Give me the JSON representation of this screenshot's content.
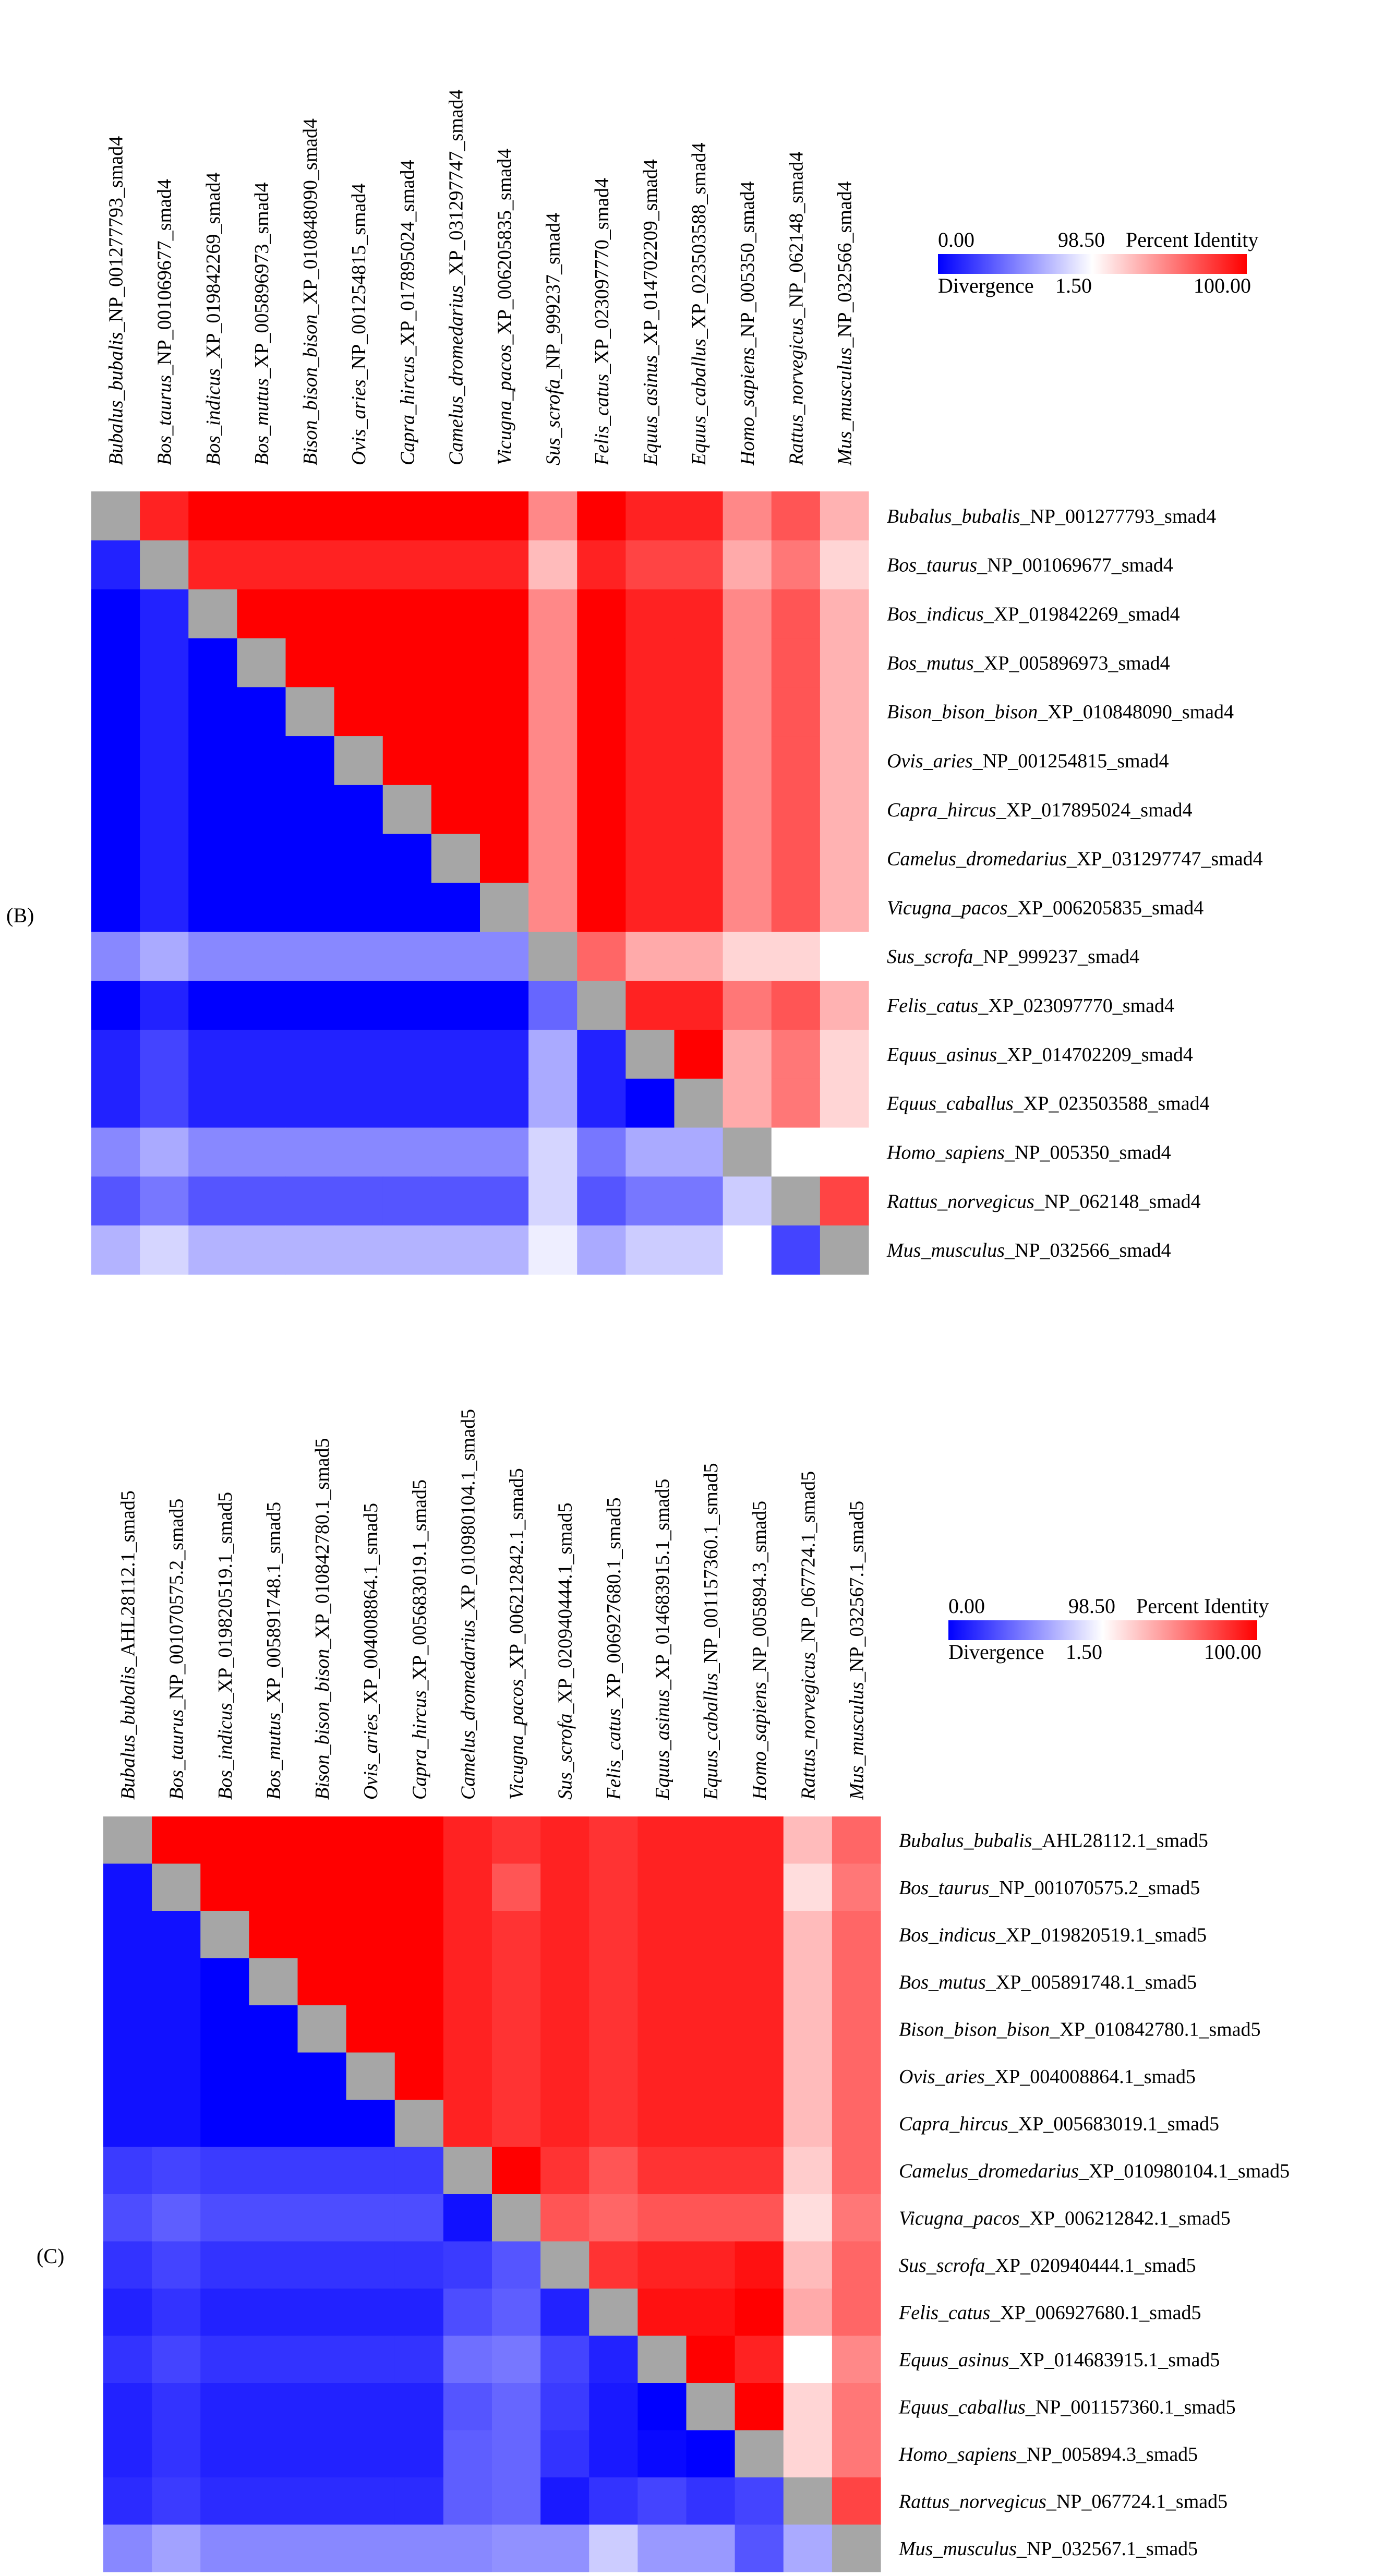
{
  "legend": {
    "min_label": "0.00",
    "mid_label": "98.50",
    "identity_label": "Percent Identity",
    "divergence_label": "Divergence",
    "div_value_label": "1.50",
    "max_label": "100.00",
    "low_color": "#0000ff",
    "mid_color": "#ffffff",
    "high_color": "#ff0000",
    "diag_color": "#a6a6a6"
  },
  "chart_data": [
    {
      "type": "heatmap",
      "panel_label": "(B)",
      "identity_range": [
        98.5,
        100
      ],
      "divergence_range": [
        0,
        1.5
      ],
      "labels": [
        {
          "species": "Bubalus_bubalis",
          "accession": "_NP_001277793_smad4"
        },
        {
          "species": "Bos_taurus",
          "accession": "_NP_001069677_smad4"
        },
        {
          "species": "Bos_indicus",
          "accession": "_XP_019842269_smad4"
        },
        {
          "species": "Bos_mutus",
          "accession": "_XP_005896973_smad4"
        },
        {
          "species": "Bison_bison_bison",
          "accession": "_XP_010848090_smad4"
        },
        {
          "species": "Ovis_aries",
          "accession": "_NP_001254815_smad4"
        },
        {
          "species": "Capra_hircus",
          "accession": "_XP_017895024_smad4"
        },
        {
          "species": "Camelus_dromedarius",
          "accession": "_XP_031297747_smad4"
        },
        {
          "species": "Vicugna_pacos",
          "accession": "_XP_006205835_smad4"
        },
        {
          "species": "Sus_scrofa",
          "accession": "_NP_999237_smad4"
        },
        {
          "species": "Felis_catus",
          "accession": "_XP_023097770_smad4"
        },
        {
          "species": "Equus_asinus",
          "accession": "_XP_014702209_smad4"
        },
        {
          "species": "Equus_caballus",
          "accession": "_XP_023503588_smad4"
        },
        {
          "species": "Homo_sapiens",
          "accession": "_NP_005350_smad4"
        },
        {
          "species": "Rattus_norvegicus",
          "accession": "_NP_062148_smad4"
        },
        {
          "species": "Mus_musculus",
          "accession": "_NP_032566_smad4"
        }
      ],
      "matrix": [
        [
          null,
          99.8,
          100,
          100,
          100,
          100,
          100,
          100,
          100,
          99.2,
          100,
          99.8,
          99.8,
          99.2,
          99.5,
          98.95
        ],
        [
          0.2,
          null,
          99.8,
          99.8,
          99.8,
          99.8,
          99.8,
          99.8,
          99.8,
          98.9,
          99.8,
          99.6,
          99.6,
          99.0,
          99.3,
          98.75
        ],
        [
          0.0,
          0.2,
          null,
          100,
          100,
          100,
          100,
          100,
          100,
          99.2,
          100,
          99.8,
          99.8,
          99.2,
          99.5,
          98.95
        ],
        [
          0.0,
          0.2,
          0.0,
          null,
          100,
          100,
          100,
          100,
          100,
          99.2,
          100,
          99.8,
          99.8,
          99.2,
          99.5,
          98.95
        ],
        [
          0.0,
          0.2,
          0.0,
          0.0,
          null,
          100,
          100,
          100,
          100,
          99.2,
          100,
          99.8,
          99.8,
          99.2,
          99.5,
          98.95
        ],
        [
          0.0,
          0.2,
          0.0,
          0.0,
          0.0,
          null,
          100,
          100,
          100,
          99.2,
          100,
          99.8,
          99.8,
          99.2,
          99.5,
          98.95
        ],
        [
          0.0,
          0.2,
          0.0,
          0.0,
          0.0,
          0.0,
          null,
          100,
          100,
          99.2,
          100,
          99.8,
          99.8,
          99.2,
          99.5,
          98.95
        ],
        [
          0.0,
          0.2,
          0.0,
          0.0,
          0.0,
          0.0,
          0.0,
          null,
          100,
          99.2,
          100,
          99.8,
          99.8,
          99.2,
          99.5,
          98.95
        ],
        [
          0.0,
          0.2,
          0.0,
          0.0,
          0.0,
          0.0,
          0.0,
          0.0,
          null,
          99.2,
          100,
          99.8,
          99.8,
          99.2,
          99.5,
          98.95
        ],
        [
          0.8,
          1.0,
          0.8,
          0.8,
          0.8,
          0.8,
          0.8,
          0.8,
          0.8,
          null,
          99.4,
          99.0,
          99.0,
          98.75,
          98.75,
          98.5
        ],
        [
          0.0,
          0.2,
          0.0,
          0.0,
          0.0,
          0.0,
          0.0,
          0.0,
          0.0,
          0.6,
          null,
          99.8,
          99.8,
          99.3,
          99.5,
          98.95
        ],
        [
          0.2,
          0.4,
          0.2,
          0.2,
          0.2,
          0.2,
          0.2,
          0.2,
          0.2,
          1.0,
          0.2,
          null,
          100,
          99.0,
          99.3,
          98.75
        ],
        [
          0.2,
          0.4,
          0.2,
          0.2,
          0.2,
          0.2,
          0.2,
          0.2,
          0.2,
          1.0,
          0.2,
          0.0,
          null,
          99.0,
          99.3,
          98.75
        ],
        [
          0.8,
          1.0,
          0.8,
          0.8,
          0.8,
          0.8,
          0.8,
          0.8,
          0.8,
          1.25,
          0.7,
          1.0,
          1.0,
          null,
          98.5,
          98.5
        ],
        [
          0.5,
          0.7,
          0.5,
          0.5,
          0.5,
          0.5,
          0.5,
          0.5,
          0.5,
          1.25,
          0.5,
          0.7,
          0.7,
          1.2,
          null,
          99.6
        ],
        [
          1.05,
          1.25,
          1.05,
          1.05,
          1.05,
          1.05,
          1.05,
          1.05,
          1.05,
          1.4,
          1.0,
          1.2,
          1.2,
          1.5,
          0.4,
          null
        ]
      ]
    },
    {
      "type": "heatmap",
      "panel_label": "(C)",
      "identity_range": [
        98.5,
        100
      ],
      "divergence_range": [
        0,
        1.5
      ],
      "labels": [
        {
          "species": "Bubalus_bubalis",
          "accession": "_AHL28112.1_smad5"
        },
        {
          "species": "Bos_taurus",
          "accession": "_NP_001070575.2_smad5"
        },
        {
          "species": "Bos_indicus",
          "accession": "_XP_019820519.1_smad5"
        },
        {
          "species": "Bos_mutus",
          "accession": "_XP_005891748.1_smad5"
        },
        {
          "species": "Bison_bison_bison",
          "accession": "_XP_010842780.1_smad5"
        },
        {
          "species": "Ovis_aries",
          "accession": "_XP_004008864.1_smad5"
        },
        {
          "species": "Capra_hircus",
          "accession": "_XP_005683019.1_smad5"
        },
        {
          "species": "Camelus_dromedarius",
          "accession": "_XP_010980104.1_smad5"
        },
        {
          "species": "Vicugna_pacos",
          "accession": "_XP_006212842.1_smad5"
        },
        {
          "species": "Sus_scrofa",
          "accession": "_XP_020940444.1_smad5"
        },
        {
          "species": "Felis_catus",
          "accession": "_XP_006927680.1_smad5"
        },
        {
          "species": "Equus_asinus",
          "accession": "_XP_014683915.1_smad5"
        },
        {
          "species": "Equus_caballus",
          "accession": "_NP_001157360.1_smad5"
        },
        {
          "species": "Homo_sapiens",
          "accession": "_NP_005894.3_smad5"
        },
        {
          "species": "Rattus_norvegicus",
          "accession": "_NP_067724.1_smad5"
        },
        {
          "species": "Mus_musculus",
          "accession": "_NP_032567.1_smad5"
        }
      ],
      "matrix": [
        [
          null,
          100,
          100,
          100,
          100,
          100,
          100,
          99.8,
          99.7,
          99.8,
          99.7,
          99.8,
          99.8,
          99.8,
          98.9,
          99.4
        ],
        [
          0.1,
          null,
          100,
          100,
          100,
          100,
          100,
          99.8,
          99.5,
          99.8,
          99.7,
          99.8,
          99.8,
          99.8,
          98.7,
          99.3
        ],
        [
          0.1,
          0.1,
          null,
          100,
          100,
          100,
          100,
          99.8,
          99.7,
          99.8,
          99.7,
          99.8,
          99.8,
          99.8,
          98.9,
          99.4
        ],
        [
          0.1,
          0.1,
          0.0,
          null,
          100,
          100,
          100,
          99.8,
          99.7,
          99.8,
          99.7,
          99.8,
          99.8,
          99.8,
          98.9,
          99.4
        ],
        [
          0.1,
          0.1,
          0.0,
          0.0,
          null,
          100,
          100,
          99.8,
          99.7,
          99.8,
          99.7,
          99.8,
          99.8,
          99.8,
          98.9,
          99.4
        ],
        [
          0.1,
          0.1,
          0.0,
          0.0,
          0.0,
          null,
          100,
          99.8,
          99.7,
          99.8,
          99.7,
          99.8,
          99.8,
          99.8,
          98.9,
          99.4
        ],
        [
          0.1,
          0.1,
          0.0,
          0.0,
          0.0,
          0.0,
          null,
          99.8,
          99.7,
          99.8,
          99.7,
          99.8,
          99.8,
          99.8,
          98.9,
          99.4
        ],
        [
          0.35,
          0.4,
          0.35,
          0.35,
          0.35,
          0.35,
          0.35,
          null,
          100,
          99.7,
          99.5,
          99.7,
          99.7,
          99.7,
          98.8,
          99.4
        ],
        [
          0.45,
          0.55,
          0.45,
          0.45,
          0.45,
          0.45,
          0.45,
          0.1,
          null,
          99.5,
          99.4,
          99.5,
          99.5,
          99.5,
          98.7,
          99.3
        ],
        [
          0.3,
          0.4,
          0.3,
          0.3,
          0.3,
          0.3,
          0.3,
          0.35,
          0.5,
          null,
          99.7,
          99.8,
          99.8,
          99.9,
          98.9,
          99.4
        ],
        [
          0.2,
          0.3,
          0.2,
          0.2,
          0.2,
          0.2,
          0.2,
          0.45,
          0.55,
          0.2,
          null,
          99.9,
          99.9,
          100,
          99.0,
          99.4
        ],
        [
          0.3,
          0.4,
          0.3,
          0.3,
          0.3,
          0.3,
          0.3,
          0.65,
          0.7,
          0.4,
          0.2,
          null,
          100,
          99.8,
          98.5,
          99.2
        ],
        [
          0.2,
          0.3,
          0.2,
          0.2,
          0.2,
          0.2,
          0.2,
          0.5,
          0.6,
          0.35,
          0.15,
          0.0,
          null,
          100,
          98.75,
          99.3
        ],
        [
          0.2,
          0.3,
          0.2,
          0.2,
          0.2,
          0.2,
          0.2,
          0.55,
          0.6,
          0.3,
          0.15,
          0.05,
          0.0,
          null,
          98.75,
          99.3
        ],
        [
          0.25,
          0.35,
          0.25,
          0.25,
          0.25,
          0.25,
          0.25,
          0.55,
          0.6,
          0.15,
          0.3,
          0.4,
          0.3,
          0.4,
          null,
          99.6
        ],
        [
          0.8,
          0.95,
          0.8,
          0.8,
          0.8,
          0.8,
          0.8,
          0.8,
          0.85,
          0.85,
          1.2,
          0.9,
          0.9,
          0.5,
          1.0,
          null
        ]
      ]
    }
  ]
}
